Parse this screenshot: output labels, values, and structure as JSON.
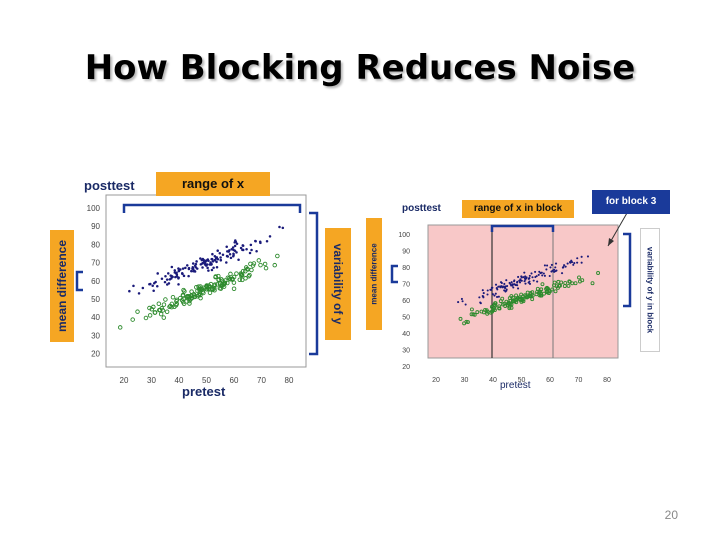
{
  "slide": {
    "title": "How Blocking Reduces Noise",
    "page_number": "20"
  },
  "left_plot": {
    "posttest_label": "posttest",
    "range_label": "range of x",
    "mean_difference_label": "mean difference",
    "variability_label": "variability of y",
    "pretest_label": "pretest",
    "x_ticks": [
      "20",
      "30",
      "40",
      "50",
      "60",
      "70",
      "80"
    ],
    "y_ticks": [
      "100",
      "90",
      "80",
      "70",
      "60",
      "50",
      "40",
      "30",
      "20"
    ]
  },
  "right_plot": {
    "posttest_label": "posttest",
    "range_label": "range of x in block",
    "block_callout": "for block 3",
    "mean_difference_label": "mean difference",
    "variability_label": "variability of y in block",
    "pretest_label": "pretest",
    "x_ticks": [
      "20",
      "30",
      "40",
      "50",
      "60",
      "70",
      "80"
    ],
    "y_ticks": [
      "100",
      "90",
      "80",
      "70",
      "60",
      "50",
      "40",
      "30",
      "20"
    ]
  },
  "colors": {
    "program_group": "#1a1a7a",
    "comparison_group": "#2e8b2e",
    "block_shading": "#f8c8c8",
    "bracket": "#1a3a9a",
    "label_box": "#f5a623"
  }
}
